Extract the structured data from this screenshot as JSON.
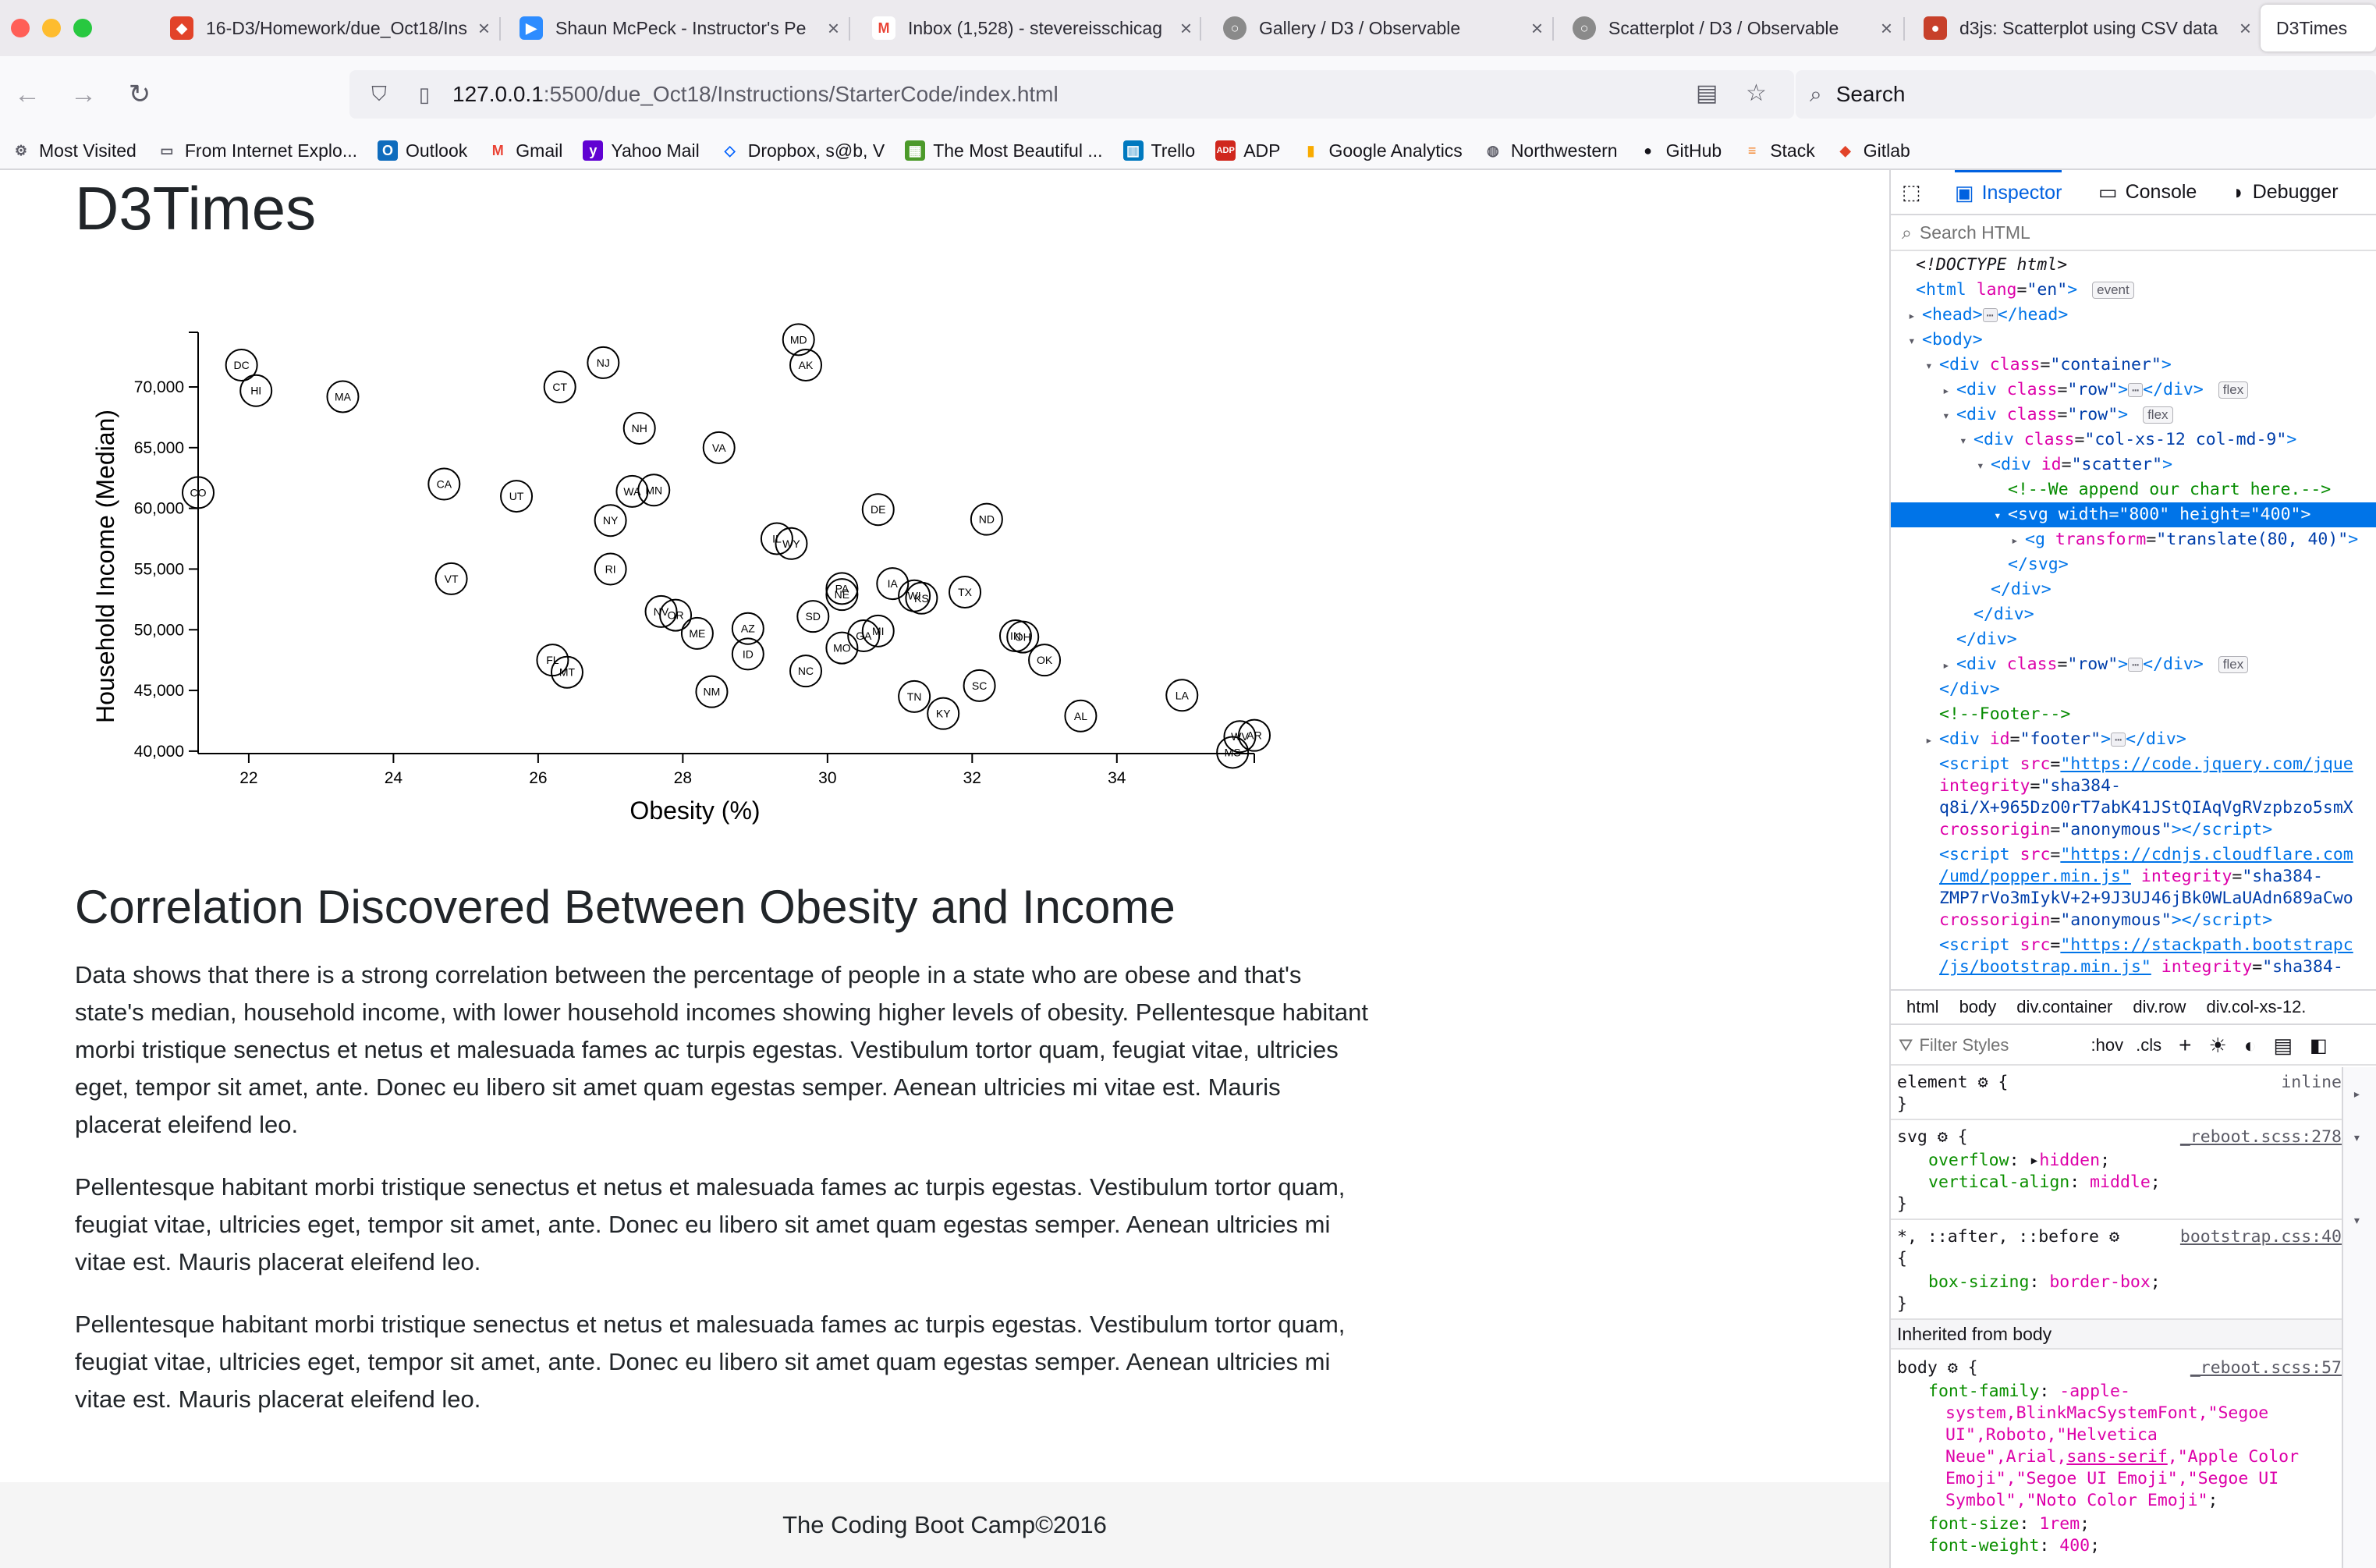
{
  "browser": {
    "tabs": [
      {
        "title": "16-D3/Homework/due_Oct18/Ins",
        "icon": "gitlab-icon",
        "color": "#e24329"
      },
      {
        "title": "Shaun McPeck - Instructor's Pe",
        "icon": "zoom-icon",
        "color": "#2d8cff"
      },
      {
        "title": "Inbox (1,528) - stevereisschicag",
        "icon": "gmail-icon",
        "color": "#ea4335"
      },
      {
        "title": "Gallery / D3 / Observable",
        "icon": "observable-icon",
        "color": "#8a8a8a"
      },
      {
        "title": "Scatterplot / D3 / Observable",
        "icon": "observable-icon",
        "color": "#8a8a8a"
      },
      {
        "title": "d3js: Scatterplot using CSV data",
        "icon": "d3-icon",
        "color": "#c7402a"
      },
      {
        "title": "D3Times",
        "icon": "none",
        "color": "#ffffff"
      }
    ],
    "url_host": "127.0.0.1",
    "url_path": ":5500/due_Oct18/Instructions/StarterCode/index.html",
    "search_placeholder": "Search",
    "bookmarks": [
      {
        "label": "Most Visited",
        "icon": "gear-icon",
        "color": "#5b5b66"
      },
      {
        "label": "From Internet Explo...",
        "icon": "folder-icon",
        "color": "#5b5b66"
      },
      {
        "label": "Outlook",
        "icon": "outlook-icon",
        "color": "#0f6cbd"
      },
      {
        "label": "Gmail",
        "icon": "gmail-icon",
        "color": "#ea4335"
      },
      {
        "label": "Yahoo Mail",
        "icon": "yahoo-icon",
        "color": "#6001d2"
      },
      {
        "label": "Dropbox, s@b, V",
        "icon": "dropbox-icon",
        "color": "#0061fe"
      },
      {
        "label": "The Most Beautiful ...",
        "icon": "map-icon",
        "color": "#4c9a2a"
      },
      {
        "label": "Trello",
        "icon": "trello-icon",
        "color": "#0079bf"
      },
      {
        "label": "ADP",
        "icon": "adp-icon",
        "color": "#d0271d"
      },
      {
        "label": "Google Analytics",
        "icon": "analytics-icon",
        "color": "#f9ab00"
      },
      {
        "label": "Northwestern",
        "icon": "globe-icon",
        "color": "#5b5b66"
      },
      {
        "label": "GitHub",
        "icon": "github-icon",
        "color": "#15141a"
      },
      {
        "label": "Stack",
        "icon": "stack-icon",
        "color": "#f48024"
      },
      {
        "label": "Gitlab",
        "icon": "gitlab-icon",
        "color": "#e24329"
      }
    ]
  },
  "page": {
    "title": "D3Times",
    "heading": "Correlation Discovered Between Obesity and Income",
    "paragraphs": [
      "Data shows that there is a strong correlation between the percentage of people in a state who are obese and that's state's median, household income, with lower household incomes showing higher levels of obesity. Pellentesque habitant morbi tristique senectus et netus et malesuada fames ac turpis egestas. Vestibulum tortor quam, feugiat vitae, ultricies eget, tempor sit amet, ante. Donec eu libero sit amet quam egestas semper. Aenean ultricies mi vitae est. Mauris placerat eleifend leo.",
      "Pellentesque habitant morbi tristique senectus et netus et malesuada fames ac turpis egestas. Vestibulum tortor quam, feugiat vitae, ultricies eget, tempor sit amet, ante. Donec eu libero sit amet quam egestas semper. Aenean ultricies mi vitae est. Mauris placerat eleifend leo.",
      "Pellentesque habitant morbi tristique senectus et netus et malesuada fames ac turpis egestas. Vestibulum tortor quam, feugiat vitae, ultricies eget, tempor sit amet, ante. Donec eu libero sit amet quam egestas semper. Aenean ultricies mi vitae est. Mauris placerat eleifend leo."
    ],
    "footer": "The Coding Boot Camp©2016"
  },
  "chart_data": {
    "type": "scatter",
    "title": "",
    "xlabel": "Obesity (%)",
    "ylabel": "Household Income (Median)",
    "xlim": [
      21.3,
      35.9
    ],
    "ylim": [
      39800,
      74500
    ],
    "xticks": [
      22,
      24,
      26,
      28,
      30,
      32,
      34
    ],
    "yticks": [
      40000,
      45000,
      50000,
      55000,
      60000,
      65000,
      70000
    ],
    "ytick_labels": [
      "40,000",
      "45,000",
      "50,000",
      "55,000",
      "60,000",
      "65,000",
      "70,000"
    ],
    "grid": false,
    "points": [
      {
        "label": "DC",
        "x": 21.9,
        "y": 71800
      },
      {
        "label": "HI",
        "x": 22.1,
        "y": 69700
      },
      {
        "label": "MA",
        "x": 23.3,
        "y": 69200
      },
      {
        "label": "CO",
        "x": 21.3,
        "y": 61300
      },
      {
        "label": "CA",
        "x": 24.7,
        "y": 62000
      },
      {
        "label": "UT",
        "x": 25.7,
        "y": 61000
      },
      {
        "label": "VT",
        "x": 24.8,
        "y": 54200
      },
      {
        "label": "CT",
        "x": 26.3,
        "y": 70000
      },
      {
        "label": "NJ",
        "x": 26.9,
        "y": 72000
      },
      {
        "label": "NH",
        "x": 27.4,
        "y": 66600
      },
      {
        "label": "WA",
        "x": 27.3,
        "y": 61400
      },
      {
        "label": "MN",
        "x": 27.6,
        "y": 61500
      },
      {
        "label": "NY",
        "x": 27.0,
        "y": 59000
      },
      {
        "label": "RI",
        "x": 27.0,
        "y": 55000
      },
      {
        "label": "NV",
        "x": 27.7,
        "y": 51500
      },
      {
        "label": "OR",
        "x": 27.9,
        "y": 51200
      },
      {
        "label": "ME",
        "x": 28.2,
        "y": 49700
      },
      {
        "label": "FL",
        "x": 26.2,
        "y": 47500
      },
      {
        "label": "MT",
        "x": 26.4,
        "y": 46500
      },
      {
        "label": "AZ",
        "x": 28.9,
        "y": 50100
      },
      {
        "label": "ID",
        "x": 28.9,
        "y": 48000
      },
      {
        "label": "NM",
        "x": 28.4,
        "y": 44900
      },
      {
        "label": "VA",
        "x": 28.5,
        "y": 65000
      },
      {
        "label": "MD",
        "x": 29.6,
        "y": 73900
      },
      {
        "label": "AK",
        "x": 29.7,
        "y": 71800
      },
      {
        "label": "IL",
        "x": 29.3,
        "y": 57500
      },
      {
        "label": "WY",
        "x": 29.5,
        "y": 57100
      },
      {
        "label": "SD",
        "x": 29.8,
        "y": 51100
      },
      {
        "label": "NC",
        "x": 29.7,
        "y": 46600
      },
      {
        "label": "DE",
        "x": 30.7,
        "y": 59900
      },
      {
        "label": "PA",
        "x": 30.2,
        "y": 53400
      },
      {
        "label": "NE",
        "x": 30.2,
        "y": 52900
      },
      {
        "label": "MO",
        "x": 30.2,
        "y": 48500
      },
      {
        "label": "GA",
        "x": 30.5,
        "y": 49500
      },
      {
        "label": "MI",
        "x": 30.7,
        "y": 49900
      },
      {
        "label": "IA",
        "x": 30.9,
        "y": 53800
      },
      {
        "label": "WI",
        "x": 31.2,
        "y": 52800
      },
      {
        "label": "KS",
        "x": 31.3,
        "y": 52600
      },
      {
        "label": "TX",
        "x": 31.9,
        "y": 53100
      },
      {
        "label": "ND",
        "x": 32.2,
        "y": 59100
      },
      {
        "label": "TN",
        "x": 31.2,
        "y": 44500
      },
      {
        "label": "KY",
        "x": 31.6,
        "y": 43100
      },
      {
        "label": "SC",
        "x": 32.1,
        "y": 45400
      },
      {
        "label": "IN",
        "x": 32.6,
        "y": 49500
      },
      {
        "label": "OH",
        "x": 32.7,
        "y": 49400
      },
      {
        "label": "OK",
        "x": 33.0,
        "y": 47500
      },
      {
        "label": "AL",
        "x": 33.5,
        "y": 42900
      },
      {
        "label": "LA",
        "x": 34.9,
        "y": 44600
      },
      {
        "label": "MS",
        "x": 35.6,
        "y": 39900
      },
      {
        "label": "WV",
        "x": 35.7,
        "y": 41200
      },
      {
        "label": "AR",
        "x": 35.9,
        "y": 41300
      }
    ]
  },
  "devtools": {
    "tabs": [
      "Inspector",
      "Console",
      "Debugger"
    ],
    "search_placeholder": "Search HTML",
    "breadcrumbs": [
      "html",
      "body",
      "div.container",
      "div.row",
      "div.col-xs-12."
    ],
    "filter_placeholder": "Filter Styles",
    "hov": ":hov",
    "cls": ".cls",
    "inherited_header": "Inherited from body"
  }
}
